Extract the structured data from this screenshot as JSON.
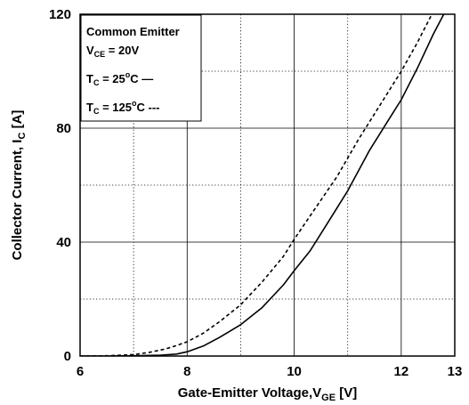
{
  "chart_data": {
    "type": "line",
    "title": "",
    "xlabel": {
      "main": "Gate-Emitter Voltage,V",
      "sub": "GE",
      "unit": " [V]"
    },
    "ylabel": {
      "main": "Collector Current, I",
      "sub": "C",
      "unit": " [A]"
    },
    "xlim": [
      6,
      13
    ],
    "ylim": [
      0,
      120
    ],
    "x_ticks": [
      "6",
      "8",
      "10",
      "12",
      "13"
    ],
    "y_ticks": [
      "0",
      "40",
      "80",
      "120"
    ],
    "grid": {
      "major": true,
      "minor_dotted": true
    },
    "legend": {
      "placement": "top-left",
      "title": "Common Emitter",
      "condition": {
        "main": "V",
        "sub": "CE",
        "rest": " = 20V"
      },
      "entries": [
        {
          "main": "T",
          "sub": "C",
          "rest": " = 25",
          "sup": "o",
          "unit": "C",
          "marker": "—",
          "style": "solid"
        },
        {
          "main": "T",
          "sub": "C",
          "rest": " = 125",
          "sup": "o",
          "unit": "C",
          "marker": "---",
          "style": "dashed"
        }
      ]
    },
    "series": [
      {
        "style": "solid",
        "x": [
          6.0,
          6.5,
          7.0,
          7.5,
          7.8,
          8.0,
          8.3,
          8.6,
          9.0,
          9.4,
          9.8,
          10.0,
          10.3,
          10.6,
          11.0,
          11.4,
          11.8,
          12.0,
          12.3,
          12.6,
          12.85
        ],
        "y": [
          0,
          0,
          0.1,
          0.3,
          0.7,
          1.5,
          3.5,
          6.5,
          11,
          17,
          25,
          30,
          37,
          46,
          58,
          72,
          84,
          90,
          101,
          113,
          122
        ]
      },
      {
        "style": "dashed",
        "x": [
          6.0,
          6.5,
          7.0,
          7.3,
          7.6,
          7.8,
          8.0,
          8.3,
          8.6,
          9.0,
          9.4,
          9.8,
          10.0,
          10.4,
          10.8,
          11.2,
          11.6,
          12.0,
          12.3,
          12.6
        ],
        "y": [
          0,
          0.1,
          0.5,
          1.3,
          2.5,
          3.7,
          5,
          8,
          12,
          18,
          26,
          35,
          41,
          52,
          63,
          76,
          88,
          100,
          110,
          121
        ]
      }
    ]
  }
}
